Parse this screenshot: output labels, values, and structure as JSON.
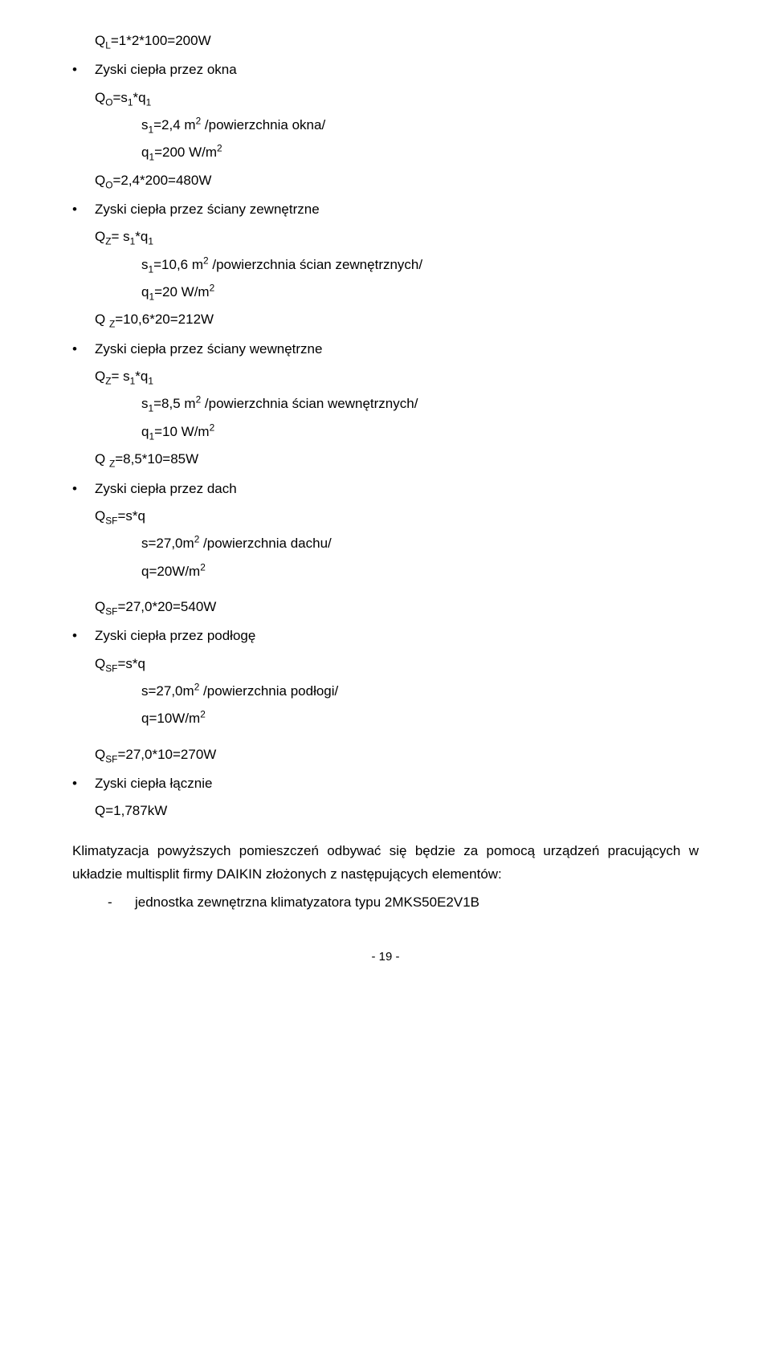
{
  "l1": "Q<span class='sub'>L</span>=1*2*100=200W",
  "b1": "Zyski ciepła przez okna",
  "l2": "Q<span class='sub'>O</span>=s<span class='sub'>1</span>*q<span class='sub'>1</span>",
  "l3": "s<span class='sub'>1</span>=2,4 m<span class='sup'>2</span> /powierzchnia okna/",
  "l4": "q<span class='sub'>1</span>=200 W/m<span class='sup'>2</span>",
  "l5": "Q<span class='sub'>O</span>=2,4*200=480W",
  "b2": "Zyski ciepła przez ściany zewnętrzne",
  "l6": "Q<span class='sub'>Z</span>= s<span class='sub'>1</span>*q<span class='sub'>1</span>",
  "l7": "s<span class='sub'>1</span>=10,6 m<span class='sup'>2</span> /powierzchnia ścian zewnętrznych/",
  "l8": "q<span class='sub'>1</span>=20 W/m<span class='sup'>2</span>",
  "l9": "Q <span class='sub'>Z</span>=10,6*20=212W",
  "b3": "Zyski ciepła przez ściany wewnętrzne",
  "l10": "Q<span class='sub'>Z</span>= s<span class='sub'>1</span>*q<span class='sub'>1</span>",
  "l11": "s<span class='sub'>1</span>=8,5 m<span class='sup'>2</span> /powierzchnia ścian wewnętrznych/",
  "l12": "q<span class='sub'>1</span>=10 W/m<span class='sup'>2</span>",
  "l13": "Q <span class='sub'>Z</span>=8,5*10=85W",
  "b4": "Zyski ciepła przez dach",
  "l14": "Q<span class='sub'>SF</span>=s*q",
  "l15": "s=27,0m<span class='sup'>2</span> /powierzchnia dachu/",
  "l16": "q=20W/m<span class='sup'>2</span>",
  "l17": "Q<span class='sub'>SF</span>=27,0*20=540W",
  "b5": "Zyski ciepła przez podłogę",
  "l18": "Q<span class='sub'>SF</span>=s*q",
  "l19": "s=27,0m<span class='sup'>2</span> /powierzchnia podłogi/",
  "l20": "q=10W/m<span class='sup'>2</span>",
  "l21": "Q<span class='sub'>SF</span>=27,0*10=270W",
  "b6": "Zyski ciepła łącznie",
  "l22": "Q=1,787kW",
  "para1": "Klimatyzacja powyższych pomieszczeń odbywać się będzie za pomocą urządzeń pracujących w układzie multisplit firmy DAIKIN złożonych z następujących elementów:",
  "dash1": "jednostka zewnętrzna klimatyzatora typu 2MKS50E2V1B",
  "pagenum": "- 19 -",
  "bullet": "•",
  "dash": "-"
}
